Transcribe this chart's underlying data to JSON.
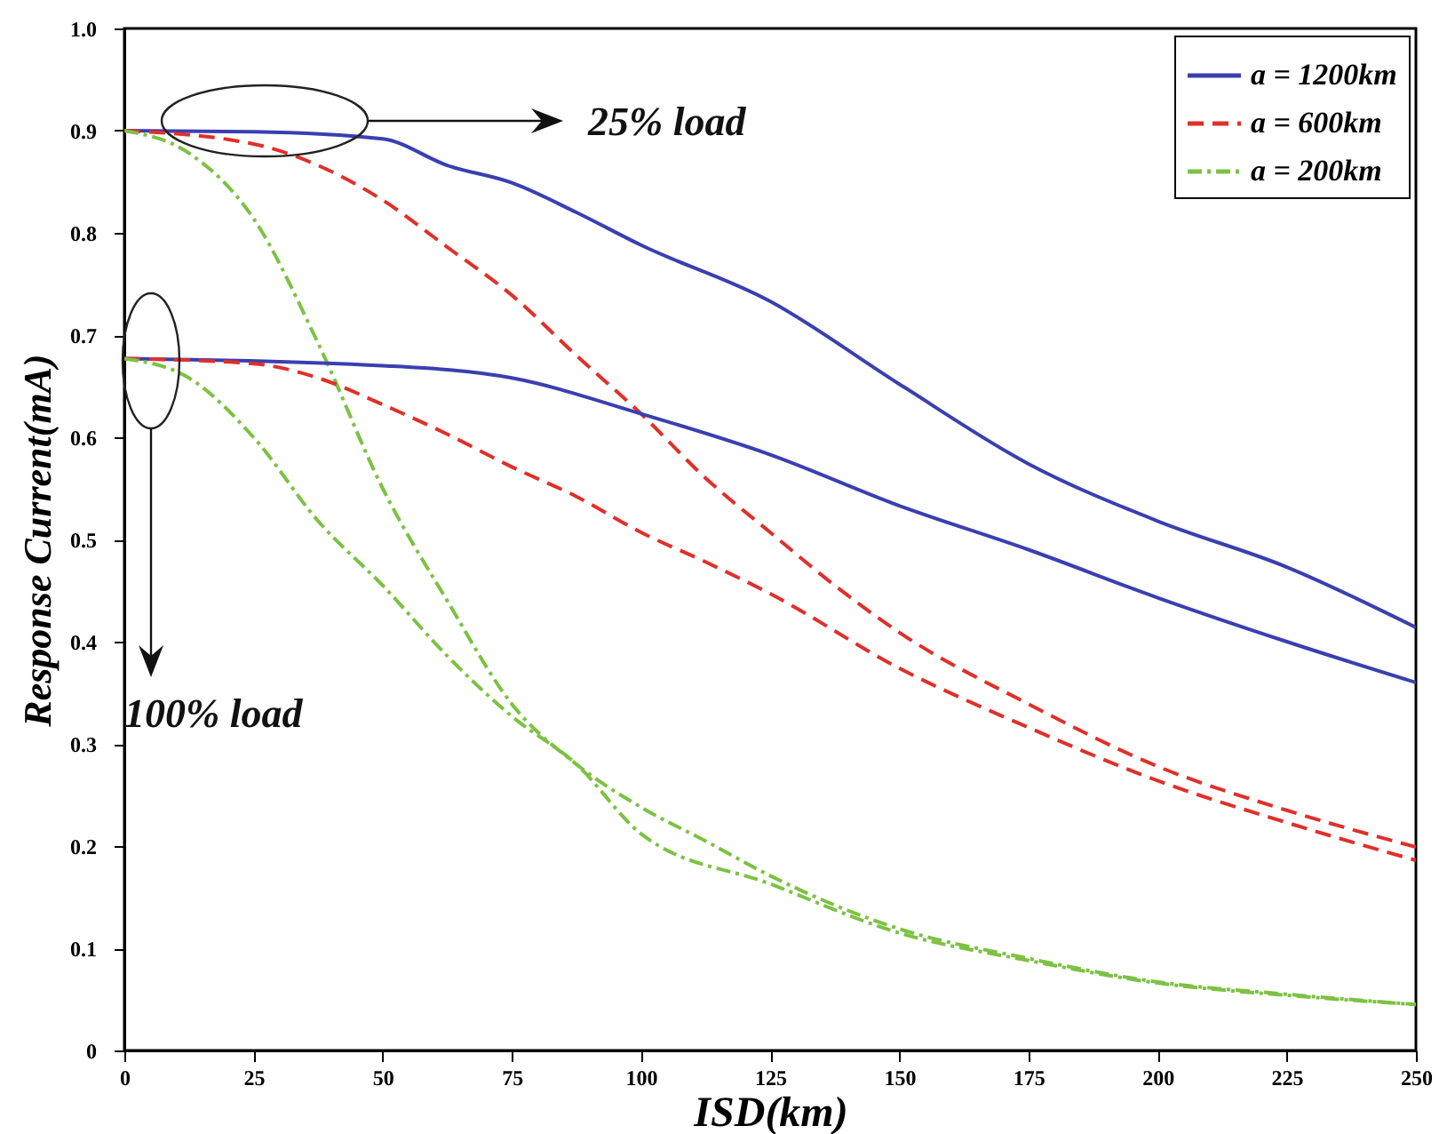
{
  "chart_data": {
    "type": "line",
    "xlabel": "ISD(km)",
    "ylabel": "Response Current(mA)",
    "xlim": [
      0,
      250
    ],
    "xticks": [
      0,
      25,
      50,
      75,
      100,
      125,
      150,
      175,
      200,
      225,
      250
    ],
    "ylim": [
      0,
      1
    ],
    "yticks": [
      0,
      0.1,
      0.2,
      0.3,
      0.4,
      0.5,
      0.6,
      0.7,
      0.8,
      0.9,
      {
        "value": 1,
        "label": "1.0"
      }
    ],
    "grid": false,
    "legend": "top right",
    "annotations": [
      "25% load",
      "100% load"
    ],
    "series": [
      {
        "name": "a = 1200km",
        "color": "#3a3fb0",
        "line_style": "solid",
        "x": [
          0,
          25,
          50,
          62.5,
          75,
          87.5,
          100,
          125,
          150,
          175,
          200,
          225,
          250
        ],
        "values": [
          0.9,
          0.899,
          0.892,
          0.866,
          0.849,
          0.82,
          0.788,
          0.733,
          0.652,
          0.574,
          0.518,
          0.473,
          0.414
        ]
      },
      {
        "name": "a = 600km",
        "color": "#e0302a",
        "line_style": "dashed",
        "x": [
          0,
          25,
          37.5,
          50,
          62.5,
          75,
          87.5,
          100,
          112.5,
          125,
          137.5,
          150,
          175,
          200,
          225,
          250
        ],
        "values": [
          0.9,
          0.887,
          0.866,
          0.832,
          0.786,
          0.739,
          0.68,
          0.623,
          0.56,
          0.507,
          0.455,
          0.409,
          0.339,
          0.278,
          0.235,
          0.199
        ]
      },
      {
        "name": "a = 200km",
        "color": "#7cc242",
        "line_style": "dashdot",
        "x": [
          0,
          12.5,
          25,
          37.5,
          50,
          62.5,
          75,
          87.5,
          100,
          112.5,
          125,
          150,
          175,
          200,
          225,
          250
        ],
        "values": [
          0.9,
          0.878,
          0.814,
          0.692,
          0.55,
          0.44,
          0.339,
          0.28,
          0.238,
          0.205,
          0.171,
          0.119,
          0.09,
          0.067,
          0.055,
          0.045
        ]
      },
      {
        "color": "#3a3fb0",
        "line_style": "solid",
        "x": [
          0,
          50,
          75,
          100,
          125,
          150,
          175,
          200,
          225,
          250
        ],
        "values": [
          0.677,
          0.67,
          0.658,
          0.623,
          0.583,
          0.533,
          0.49,
          0.443,
          0.4,
          0.36
        ]
      },
      {
        "color": "#e0302a",
        "line_style": "dashed",
        "x": [
          0,
          25,
          37.5,
          50,
          62.5,
          75,
          87.5,
          100,
          112.5,
          125,
          150,
          175,
          200,
          225,
          250
        ],
        "values": [
          0.677,
          0.672,
          0.658,
          0.632,
          0.603,
          0.571,
          0.542,
          0.507,
          0.478,
          0.447,
          0.374,
          0.316,
          0.264,
          0.223,
          0.186
        ]
      },
      {
        "color": "#7cc242",
        "line_style": "dashdot",
        "x": [
          0,
          12.5,
          25,
          37.5,
          50,
          62.5,
          75,
          87.5,
          100,
          125,
          150,
          175,
          200,
          225,
          250
        ],
        "values": [
          0.677,
          0.658,
          0.6,
          0.518,
          0.455,
          0.386,
          0.327,
          0.28,
          0.212,
          0.163,
          0.115,
          0.088,
          0.066,
          0.054,
          0.045
        ]
      }
    ]
  }
}
